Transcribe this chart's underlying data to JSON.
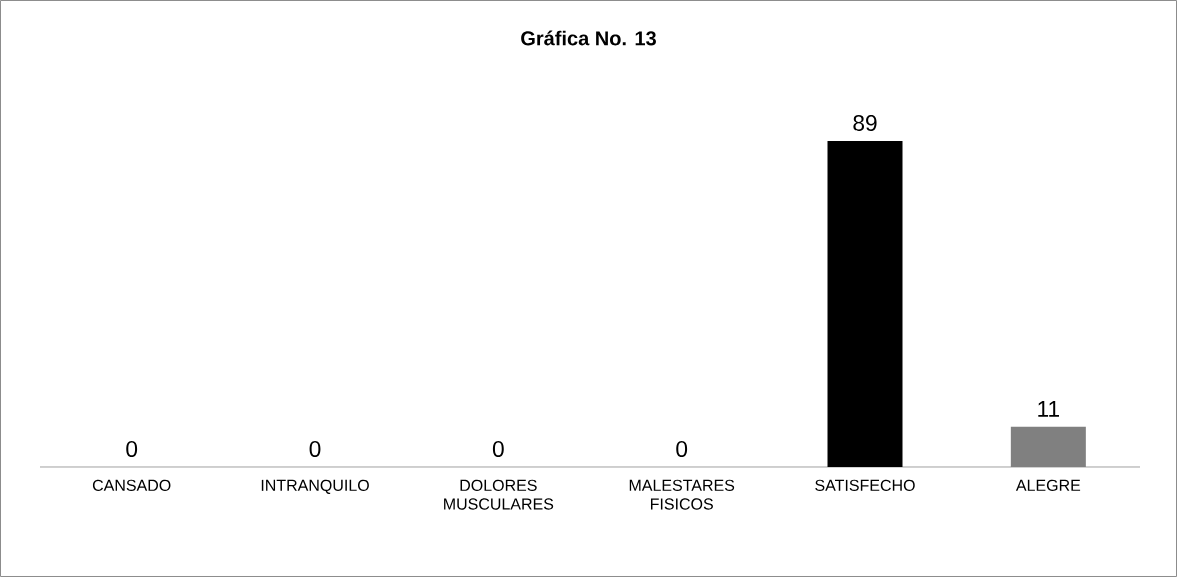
{
  "chart_data": {
    "type": "bar",
    "title": "Gráfica No. 13",
    "categories": [
      "CANSADO",
      "INTRANQUILO",
      "DOLORES MUSCULARES",
      "MALESTARES FISICOS",
      "SATISFECHO",
      "ALEGRE"
    ],
    "values": [
      0,
      0,
      0,
      0,
      89,
      11
    ],
    "colors": [
      "#000000",
      "#000000",
      "#000000",
      "#000000",
      "#000000",
      "#808080"
    ],
    "data_labels": true
  }
}
